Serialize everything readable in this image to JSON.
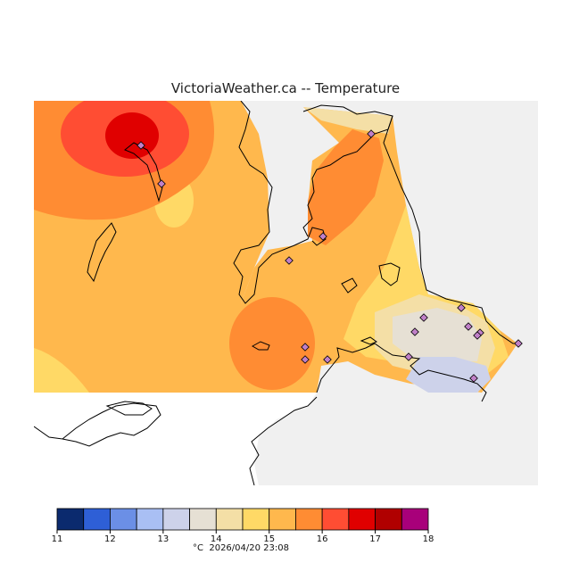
{
  "title": "VictoriaWeather.ca -- Temperature",
  "legend": {
    "unit": "°C",
    "ticks": [
      "11",
      "12",
      "13",
      "14",
      "15",
      "16",
      "17",
      "18"
    ],
    "bins": [
      {
        "from": 11.0,
        "to": 11.5,
        "color": "#0b2a6e"
      },
      {
        "from": 11.5,
        "to": 12.0,
        "color": "#2e5fd6"
      },
      {
        "from": 12.0,
        "to": 12.5,
        "color": "#6b8fe6"
      },
      {
        "from": 12.5,
        "to": 13.0,
        "color": "#a9bff4"
      },
      {
        "from": 13.0,
        "to": 13.5,
        "color": "#cdd2ea"
      },
      {
        "from": 13.5,
        "to": 14.0,
        "color": "#e6e0d4"
      },
      {
        "from": 14.0,
        "to": 14.5,
        "color": "#f4dfa6"
      },
      {
        "from": 14.5,
        "to": 15.0,
        "color": "#ffd966"
      },
      {
        "from": 15.0,
        "to": 15.5,
        "color": "#ffb84d"
      },
      {
        "from": 15.5,
        "to": 16.0,
        "color": "#ff8c33"
      },
      {
        "from": 16.0,
        "to": 16.5,
        "color": "#ff4d33"
      },
      {
        "from": 16.5,
        "to": 17.0,
        "color": "#e00000"
      },
      {
        "from": 17.0,
        "to": 17.5,
        "color": "#b00000"
      },
      {
        "from": 17.5,
        "to": 18.0,
        "color": "#a8007a"
      }
    ]
  },
  "timestamp": "2026/04/20 23:08",
  "colors": {
    "outside_region": "#f0f0f0",
    "station_marker": "#c080c8"
  }
}
